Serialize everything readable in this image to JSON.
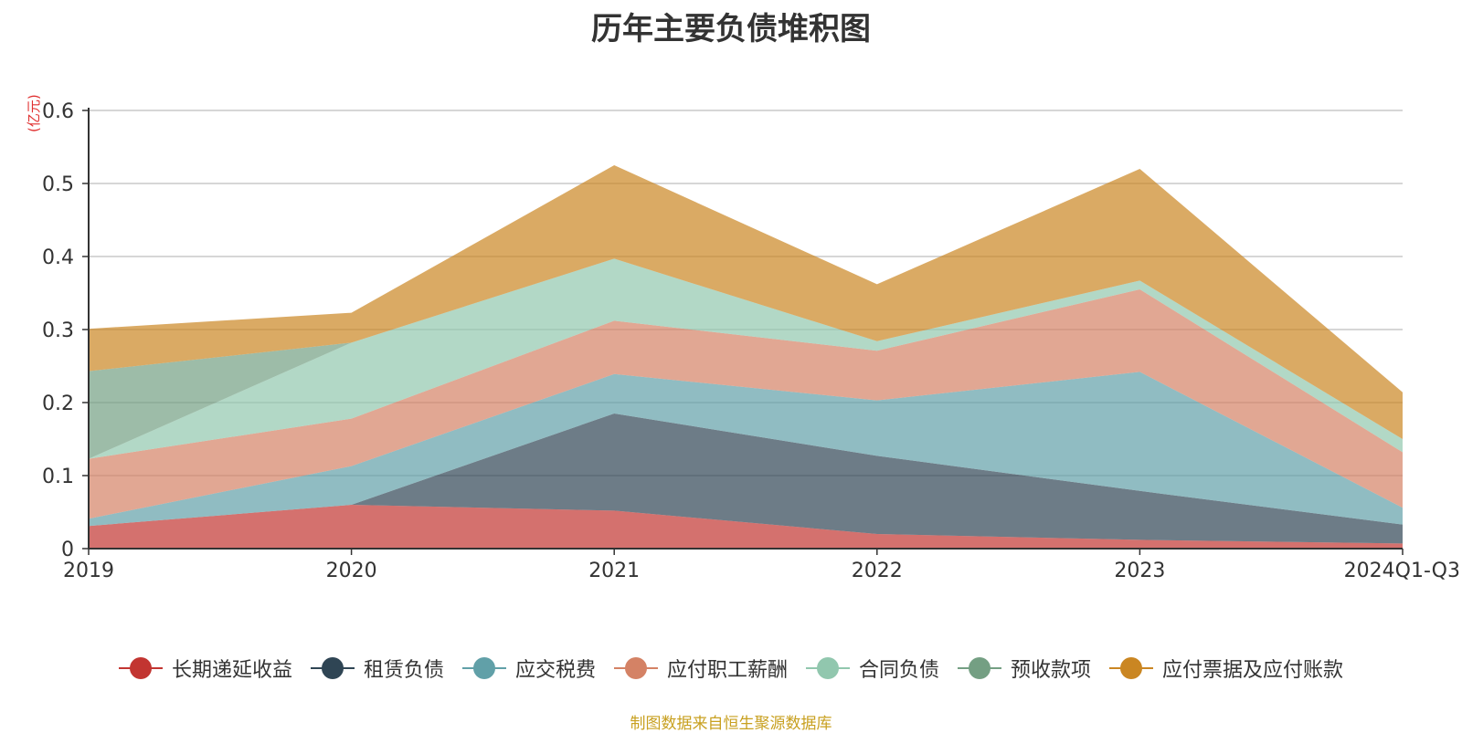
{
  "chart_data": {
    "type": "area",
    "stacked": true,
    "title": "历年主要负债堆积图",
    "unit_label": "(亿元)",
    "categories": [
      "2019",
      "2020",
      "2021",
      "2022",
      "2023",
      "2024Q1-Q3"
    ],
    "ylim": [
      0,
      0.6
    ],
    "yticks": [
      "0",
      "0.1",
      "0.2",
      "0.3",
      "0.4",
      "0.5",
      "0.6"
    ],
    "grid": true,
    "legend_position": "bottom",
    "series": [
      {
        "name": "长期递延收益",
        "color": "#c23531",
        "values": [
          0.031,
          0.06,
          0.052,
          0.02,
          0.012,
          0.007
        ]
      },
      {
        "name": "租赁负债",
        "color": "#2f4554",
        "values": [
          0.0,
          0.0,
          0.133,
          0.107,
          0.067,
          0.026
        ]
      },
      {
        "name": "应交税费",
        "color": "#61a0a8",
        "values": [
          0.01,
          0.053,
          0.054,
          0.076,
          0.163,
          0.023
        ]
      },
      {
        "name": "应付职工薪酬",
        "color": "#d48265",
        "values": [
          0.082,
          0.065,
          0.073,
          0.068,
          0.113,
          0.076
        ]
      },
      {
        "name": "合同负债",
        "color": "#91c7ae",
        "values": [
          0.0,
          0.104,
          0.085,
          0.013,
          0.012,
          0.018
        ]
      },
      {
        "name": "预收款项",
        "color": "#749f83",
        "values": [
          0.12,
          0.0,
          0.0,
          0.0,
          0.0,
          0.0
        ]
      },
      {
        "name": "应付票据及应付账款",
        "color": "#ca8622",
        "values": [
          0.058,
          0.041,
          0.128,
          0.078,
          0.153,
          0.064
        ]
      }
    ]
  },
  "source_text": "制图数据来自恒生聚源数据库"
}
